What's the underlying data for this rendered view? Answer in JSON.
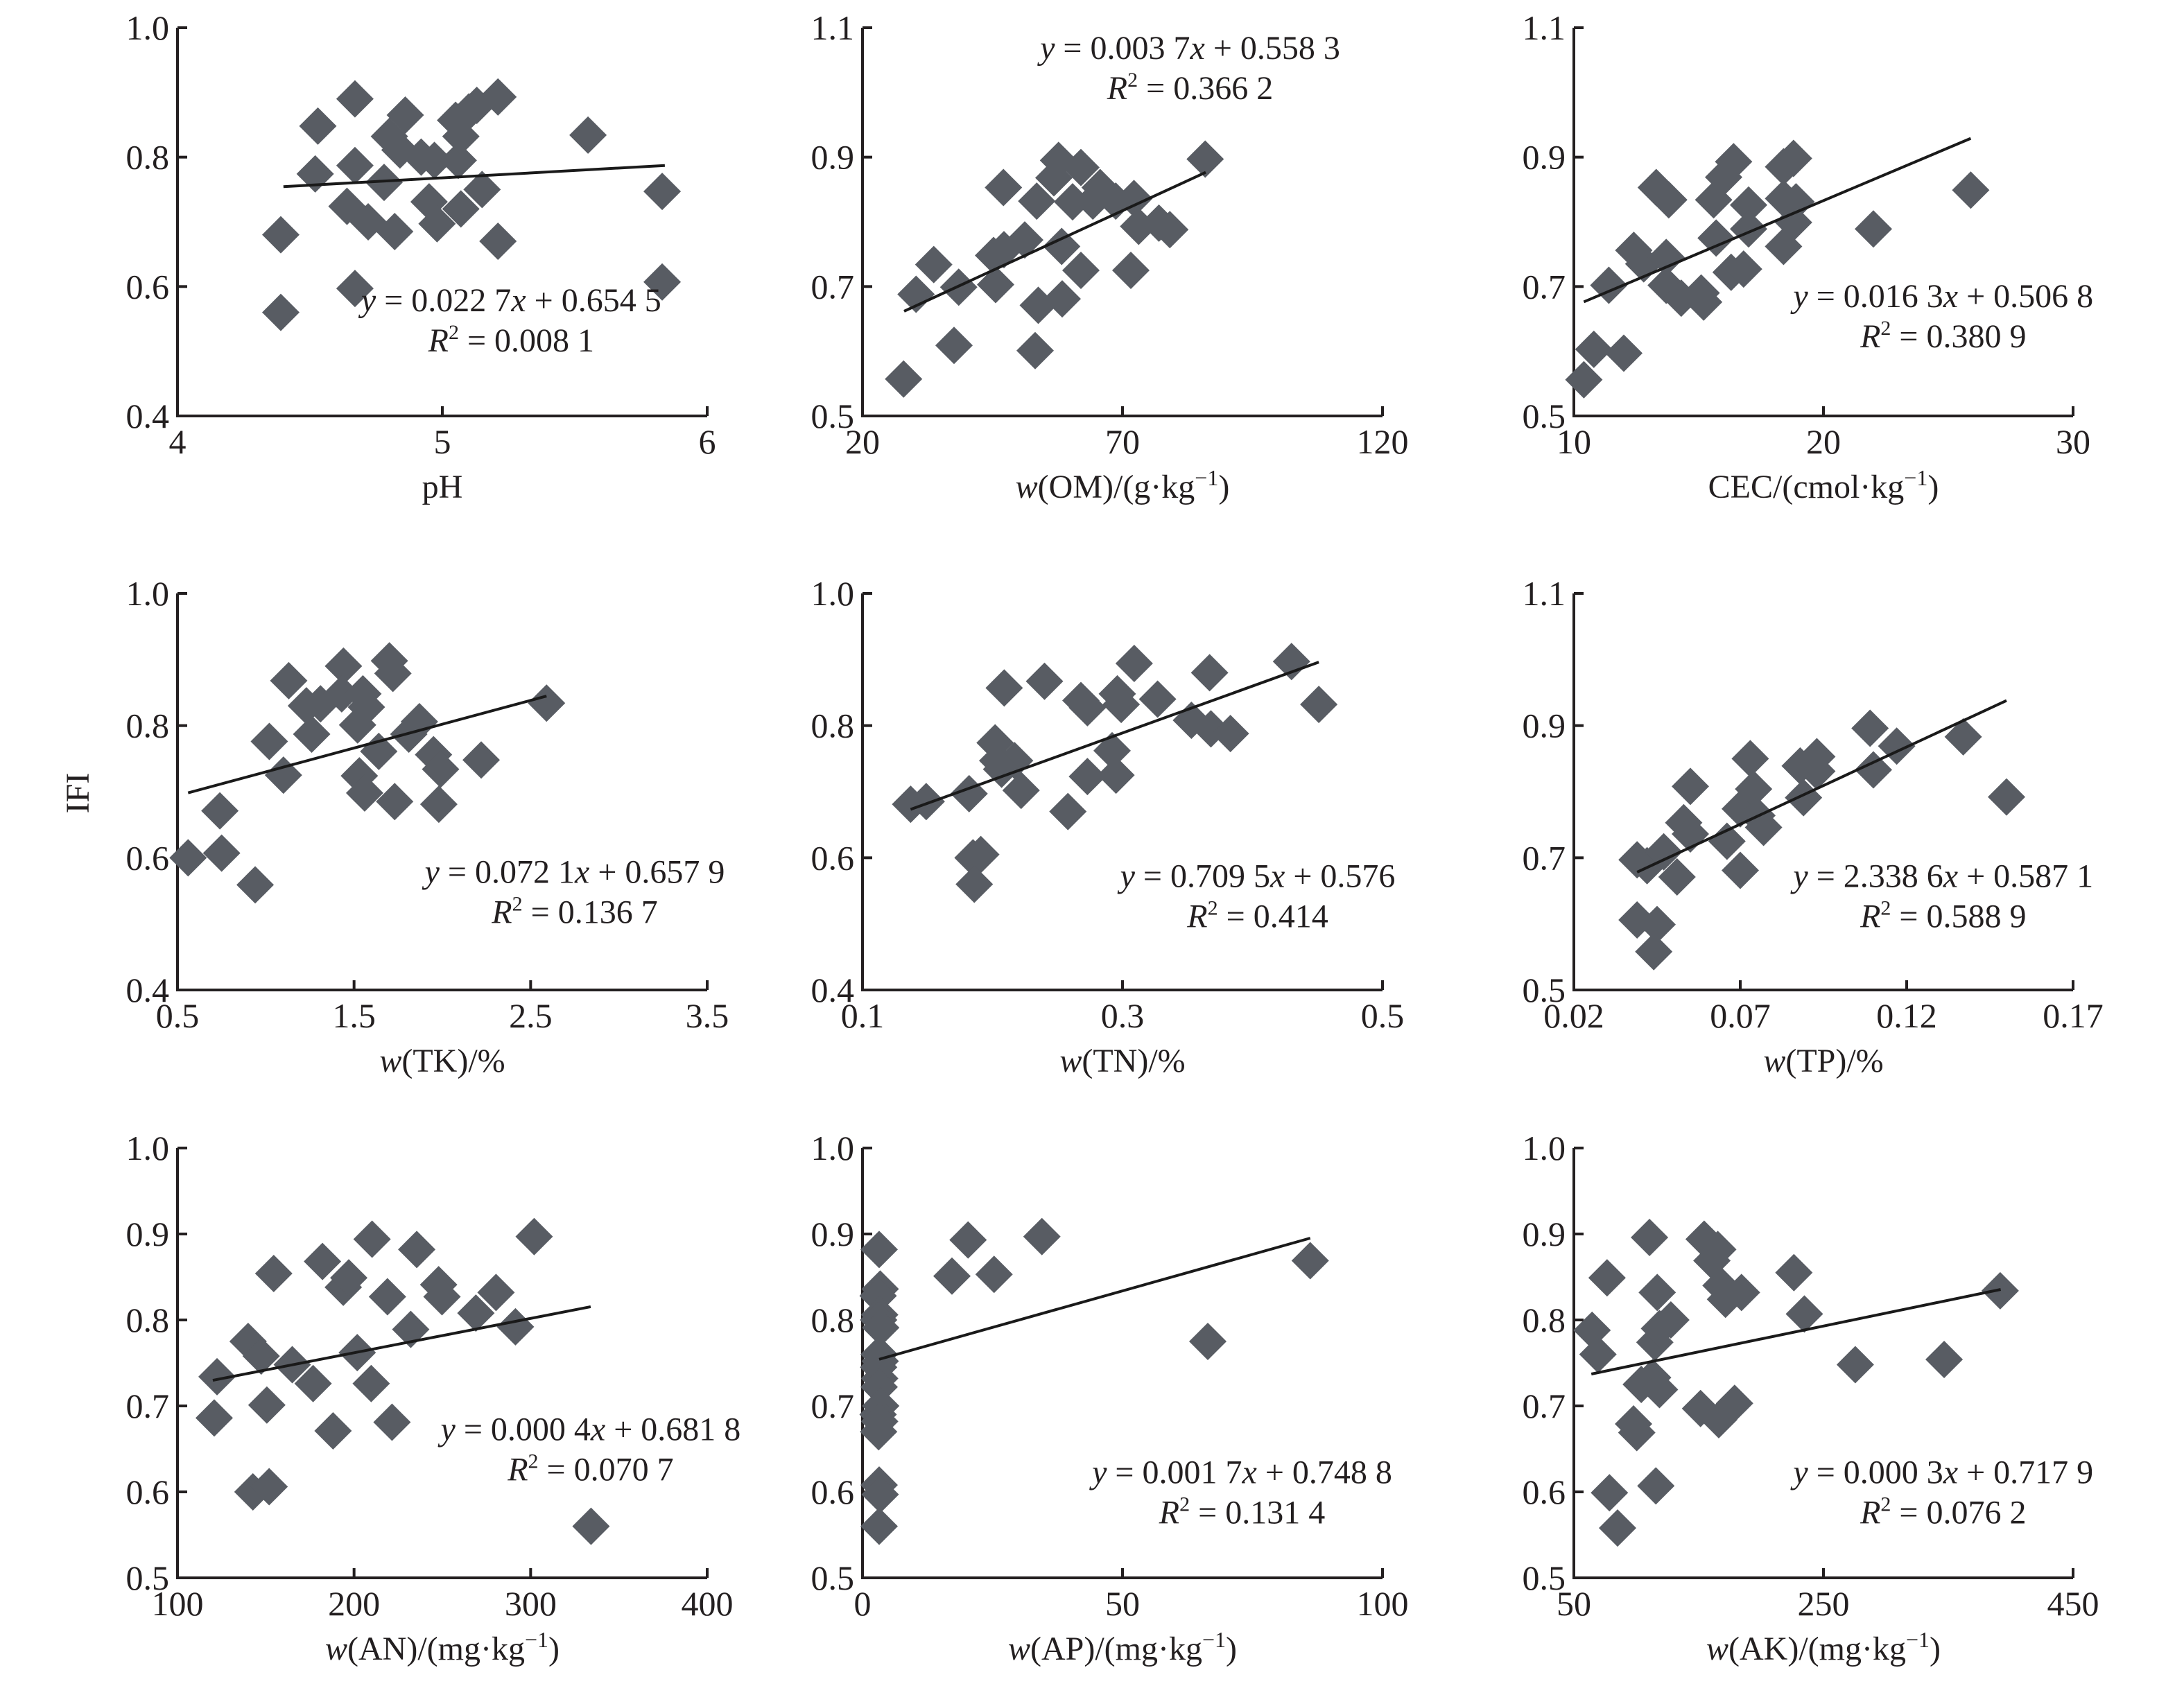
{
  "figure": {
    "shared_ylabel": "IFI",
    "marker_color": "#585c63",
    "line_color": "#1a1a1a"
  },
  "chart_data": [
    {
      "type": "scatter",
      "id": "ph",
      "xlabel": {
        "italic": "",
        "main": "pH",
        "sup": ""
      },
      "ylabel": "IFI",
      "xlim": [
        4,
        6
      ],
      "xticks": [
        "4",
        "5",
        "6"
      ],
      "ylim": [
        0.4,
        1.0
      ],
      "yticks": [
        "0.4",
        "0.6",
        "0.8",
        "1.0"
      ],
      "equation": {
        "slope_text": "0.022 7",
        "intercept_text": "0.654 5",
        "r2_text": "0.008 1",
        "slope": 0.0227,
        "intercept": 0.6545
      },
      "trend_x": [
        4.4,
        5.84
      ],
      "x": [
        4.67,
        4.53,
        4.86,
        5.21,
        5.13,
        5.55,
        4.52,
        4.67,
        4.8,
        4.84,
        4.97,
        5.06,
        5.05,
        5.07,
        4.78,
        4.64,
        4.72,
        4.82,
        4.95,
        4.98,
        5.07,
        5.15,
        5.21,
        4.39,
        4.39,
        4.67,
        5.83,
        5.83,
        5.1,
        4.92
      ],
      "y": [
        0.89,
        0.848,
        0.865,
        0.893,
        0.88,
        0.834,
        0.774,
        0.787,
        0.832,
        0.811,
        0.795,
        0.795,
        0.857,
        0.832,
        0.761,
        0.724,
        0.7,
        0.685,
        0.731,
        0.697,
        0.72,
        0.75,
        0.67,
        0.68,
        0.56,
        0.597,
        0.747,
        0.607,
        0.87,
        0.8
      ]
    },
    {
      "type": "scatter",
      "id": "om",
      "xlabel": {
        "italic": "w",
        "main": "(OM)/(g·kg",
        "sup": "−1",
        "tail": ")"
      },
      "ylabel": "IFI",
      "xlim": [
        20,
        120
      ],
      "xticks": [
        "20",
        "70",
        "120"
      ],
      "ylim": [
        0.5,
        1.1
      ],
      "yticks": [
        "0.5",
        "0.7",
        "0.9",
        "1.1"
      ],
      "equation": {
        "slope_text": "0.003 7",
        "intercept_text": "0.558 3",
        "r2_text": "0.366 2",
        "slope": 0.0037,
        "intercept": 0.5583
      },
      "trend_x": [
        28,
        86
      ],
      "x": [
        27.9,
        33.7,
        30.3,
        38.5,
        37.6,
        47.1,
        45.6,
        45.2,
        47.2,
        51.2,
        53.5,
        53.8,
        53.2,
        57.7,
        56.8,
        60.4,
        62.0,
        58.3,
        62.0,
        58.4,
        64.3,
        65.7,
        68.7,
        71.6,
        72.2,
        73.1,
        77.0,
        79.1,
        85.9
      ],
      "y": [
        0.557,
        0.734,
        0.688,
        0.699,
        0.609,
        0.853,
        0.703,
        0.748,
        0.757,
        0.772,
        0.832,
        0.671,
        0.601,
        0.895,
        0.868,
        0.831,
        0.884,
        0.762,
        0.725,
        0.681,
        0.832,
        0.853,
        0.832,
        0.725,
        0.836,
        0.793,
        0.798,
        0.788,
        0.897
      ]
    },
    {
      "type": "scatter",
      "id": "cec",
      "xlabel": {
        "italic": "",
        "main": "CEC/(cmol·kg",
        "sup": "−1",
        "tail": ")"
      },
      "ylabel": "IFI",
      "xlim": [
        10,
        30
      ],
      "xticks": [
        "10",
        "20",
        "30"
      ],
      "ylim": [
        0.5,
        1.1
      ],
      "yticks": [
        "0.5",
        "0.7",
        "0.9",
        "1.1"
      ],
      "equation": {
        "slope_text": "0.016 3",
        "intercept_text": "0.506 8",
        "r2_text": "0.380 9",
        "slope": 0.0163,
        "intercept": 0.5068
      },
      "trend_x": [
        10.4,
        25.9
      ],
      "x": [
        10.4,
        10.8,
        12.0,
        11.4,
        12.4,
        12.8,
        13.3,
        13.8,
        13.7,
        13.7,
        14.3,
        15.2,
        15.1,
        15.6,
        15.7,
        16.0,
        16.4,
        16.3,
        16.8,
        17.0,
        17.0,
        18.4,
        18.8,
        18.4,
        18.4,
        18.8,
        18.9,
        22.0,
        25.9
      ],
      "y": [
        0.556,
        0.603,
        0.597,
        0.702,
        0.756,
        0.735,
        0.853,
        0.834,
        0.745,
        0.702,
        0.682,
        0.676,
        0.69,
        0.834,
        0.775,
        0.869,
        0.893,
        0.722,
        0.727,
        0.826,
        0.789,
        0.885,
        0.898,
        0.836,
        0.762,
        0.799,
        0.831,
        0.789,
        0.849
      ]
    },
    {
      "type": "scatter",
      "id": "tk",
      "xlabel": {
        "italic": "w",
        "main": "(TK)/%",
        "sup": "",
        "tail": ""
      },
      "ylabel": "IFI",
      "xlim": [
        0.5,
        3.5
      ],
      "xticks": [
        "0.5",
        "1.5",
        "2.5",
        "3.5"
      ],
      "ylim": [
        0.4,
        1.0
      ],
      "yticks": [
        "0.4",
        "0.6",
        "0.8",
        "1.0"
      ],
      "equation": {
        "slope_text": "0.072 1",
        "intercept_text": "0.657 9",
        "r2_text": "0.136 7",
        "slope": 0.0721,
        "intercept": 0.6579
      },
      "trend_x": [
        0.56,
        2.59
      ],
      "x": [
        0.56,
        0.75,
        0.74,
        0.94,
        1.02,
        1.1,
        1.13,
        1.26,
        1.23,
        1.31,
        1.44,
        1.43,
        1.55,
        1.52,
        1.57,
        1.53,
        1.56,
        1.64,
        1.7,
        1.72,
        1.73,
        1.81,
        1.87,
        1.95,
        1.99,
        1.98,
        2.22,
        2.59
      ],
      "y": [
        0.6,
        0.607,
        0.671,
        0.559,
        0.776,
        0.725,
        0.868,
        0.787,
        0.83,
        0.833,
        0.89,
        0.848,
        0.848,
        0.801,
        0.828,
        0.724,
        0.698,
        0.761,
        0.898,
        0.879,
        0.685,
        0.787,
        0.806,
        0.756,
        0.734,
        0.681,
        0.748,
        0.834
      ]
    },
    {
      "type": "scatter",
      "id": "tn",
      "xlabel": {
        "italic": "w",
        "main": "(TN)/%",
        "sup": "",
        "tail": ""
      },
      "ylabel": "IFI",
      "xlim": [
        0.1,
        0.5
      ],
      "xticks": [
        "0.1",
        "0.3",
        "0.5"
      ],
      "ylim": [
        0.4,
        1.0
      ],
      "yticks": [
        "0.4",
        "0.6",
        "0.8",
        "1.0"
      ],
      "equation": {
        "slope_text": "0.709 5",
        "intercept_text": "0.576",
        "r2_text": "0.414",
        "slope": 0.7095,
        "intercept": 0.576
      },
      "trend_x": [
        0.137,
        0.451
      ],
      "x": [
        0.137,
        0.149,
        0.182,
        0.185,
        0.191,
        0.186,
        0.209,
        0.202,
        0.204,
        0.217,
        0.207,
        0.222,
        0.24,
        0.258,
        0.268,
        0.273,
        0.273,
        0.292,
        0.295,
        0.296,
        0.299,
        0.309,
        0.327,
        0.353,
        0.367,
        0.368,
        0.383,
        0.43,
        0.451
      ],
      "y": [
        0.681,
        0.685,
        0.697,
        0.6,
        0.605,
        0.56,
        0.857,
        0.774,
        0.747,
        0.747,
        0.734,
        0.702,
        0.867,
        0.67,
        0.838,
        0.827,
        0.723,
        0.762,
        0.725,
        0.848,
        0.832,
        0.894,
        0.84,
        0.808,
        0.88,
        0.795,
        0.788,
        0.897,
        0.832
      ]
    },
    {
      "type": "scatter",
      "id": "tp",
      "xlabel": {
        "italic": "w",
        "main": "(TP)/%",
        "sup": "",
        "tail": ""
      },
      "ylabel": "IFI",
      "xlim": [
        0.02,
        0.17
      ],
      "xticks": [
        "0.02",
        "0.07",
        "0.12",
        "0.17"
      ],
      "ylim": [
        0.5,
        1.1
      ],
      "yticks": [
        "0.5",
        "0.7",
        "0.9",
        "1.1"
      ],
      "equation": {
        "slope_text": "2.338 6",
        "intercept_text": "0.587 1",
        "r2_text": "0.588 9",
        "slope": 2.3386,
        "intercept": 0.5871
      },
      "trend_x": [
        0.039,
        0.15
      ],
      "x": [
        0.039,
        0.045,
        0.044,
        0.039,
        0.042,
        0.047,
        0.051,
        0.053,
        0.055,
        0.055,
        0.066,
        0.07,
        0.07,
        0.073,
        0.074,
        0.075,
        0.077,
        0.089,
        0.088,
        0.093,
        0.093,
        0.109,
        0.11,
        0.117,
        0.137,
        0.15
      ],
      "y": [
        0.606,
        0.599,
        0.558,
        0.697,
        0.688,
        0.709,
        0.671,
        0.753,
        0.736,
        0.808,
        0.725,
        0.681,
        0.774,
        0.85,
        0.804,
        0.764,
        0.746,
        0.791,
        0.839,
        0.853,
        0.831,
        0.896,
        0.833,
        0.869,
        0.883,
        0.792
      ]
    },
    {
      "type": "scatter",
      "id": "an",
      "xlabel": {
        "italic": "w",
        "main": "(AN)/(mg·kg",
        "sup": "−1",
        "tail": ")"
      },
      "ylabel": "IFI",
      "xlim": [
        100,
        400
      ],
      "xticks": [
        "100",
        "200",
        "300",
        "400"
      ],
      "ylim": [
        0.5,
        1.0
      ],
      "yticks": [
        "0.5",
        "0.6",
        "0.7",
        "0.8",
        "0.9",
        "1.0"
      ],
      "equation": {
        "slope_text": "0.000 4",
        "intercept_text": "0.681 8",
        "r2_text": "0.070 7",
        "slope": 0.0004,
        "intercept": 0.6818
      },
      "trend_x": [
        120,
        334
      ],
      "x": [
        120.8,
        122.4,
        140.0,
        142.7,
        147.4,
        150.6,
        151.9,
        154.5,
        165.0,
        176.8,
        182.1,
        188.1,
        193.9,
        197.0,
        201.8,
        209.7,
        210.2,
        218.9,
        221.5,
        232.1,
        235.5,
        247.9,
        249.8,
        269.0,
        280.4,
        291.4,
        302.0,
        334.2
      ],
      "y": [
        0.686,
        0.734,
        0.775,
        0.6,
        0.758,
        0.701,
        0.606,
        0.854,
        0.748,
        0.726,
        0.868,
        0.671,
        0.838,
        0.849,
        0.762,
        0.726,
        0.894,
        0.827,
        0.681,
        0.789,
        0.882,
        0.841,
        0.827,
        0.808,
        0.832,
        0.792,
        0.897,
        0.56
      ]
    },
    {
      "type": "scatter",
      "id": "ap",
      "xlabel": {
        "italic": "w",
        "main": "(AP)/(mg·kg",
        "sup": "−1",
        "tail": ")"
      },
      "ylabel": "IFI",
      "xlim": [
        0,
        100
      ],
      "xticks": [
        "0",
        "50",
        "100"
      ],
      "ylim": [
        0.5,
        1.0
      ],
      "yticks": [
        "0.5",
        "0.6",
        "0.7",
        "0.8",
        "0.9",
        "1.0"
      ],
      "equation": {
        "slope_text": "0.001 7",
        "intercept_text": "0.748 8",
        "r2_text": "0.131 4",
        "slope": 0.0017,
        "intercept": 0.7488
      },
      "trend_x": [
        3.2,
        86.1
      ],
      "x": [
        3.2,
        3.4,
        3.0,
        3.3,
        3.1,
        3.5,
        3.2,
        3.4,
        3.1,
        3.3,
        3.2,
        3.5,
        3.0,
        3.3,
        3.1,
        3.2,
        3.4,
        3.2,
        17.2,
        20.3,
        25.3,
        34.5,
        66.4,
        86.1
      ],
      "y": [
        0.882,
        0.836,
        0.828,
        0.806,
        0.8,
        0.791,
        0.76,
        0.752,
        0.745,
        0.732,
        0.722,
        0.7,
        0.69,
        0.682,
        0.67,
        0.608,
        0.597,
        0.56,
        0.851,
        0.893,
        0.853,
        0.897,
        0.775,
        0.869
      ]
    },
    {
      "type": "scatter",
      "id": "ak",
      "xlabel": {
        "italic": "w",
        "main": "(AK)/(mg·kg",
        "sup": "−1",
        "tail": ")"
      },
      "ylabel": "IFI",
      "xlim": [
        50,
        450
      ],
      "xticks": [
        "50",
        "250",
        "450"
      ],
      "ylim": [
        0.5,
        1.0
      ],
      "yticks": [
        "0.5",
        "0.6",
        "0.7",
        "0.8",
        "0.9",
        "1.0"
      ],
      "equation": {
        "slope_text": "0.000 3",
        "intercept_text": "0.717 9",
        "r2_text": "0.076 2",
        "slope": 0.0003,
        "intercept": 0.7179
      },
      "trend_x": [
        64,
        392
      ],
      "x": [
        64.6,
        69.3,
        76.6,
        78.5,
        85.0,
        97.8,
        100.4,
        104.0,
        110.6,
        113.1,
        114.9,
        118.6,
        116.8,
        118.6,
        115.7,
        127.7,
        151.5,
        154.4,
        160.6,
        165.3,
        166.1,
        167.9,
        171.5,
        178.8,
        184.3,
        226.3,
        234.7,
        275.5,
        346.7,
        391.6
      ],
      "y": [
        0.788,
        0.76,
        0.849,
        0.599,
        0.558,
        0.679,
        0.669,
        0.725,
        0.896,
        0.733,
        0.774,
        0.719,
        0.832,
        0.79,
        0.607,
        0.8,
        0.697,
        0.894,
        0.869,
        0.882,
        0.684,
        0.84,
        0.824,
        0.703,
        0.832,
        0.855,
        0.807,
        0.748,
        0.754,
        0.834
      ]
    }
  ]
}
